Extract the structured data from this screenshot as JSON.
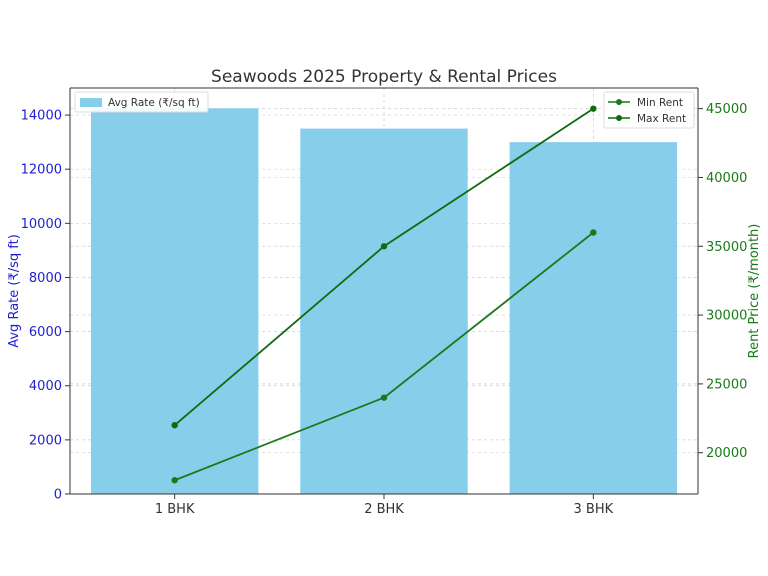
{
  "chart_data": {
    "type": "bar+line",
    "title": "Seawoods 2025 Property & Rental Prices",
    "categories": [
      "1 BHK",
      "2 BHK",
      "3 BHK"
    ],
    "bar_series": {
      "name": "Avg Rate (₹/sq ft)",
      "values": [
        14250,
        13500,
        13000
      ],
      "color": "#87ceeb"
    },
    "line_series": [
      {
        "name": "Min Rent",
        "values": [
          18000,
          24000,
          36000
        ],
        "color": "#1a7a1a"
      },
      {
        "name": "Max Rent",
        "values": [
          22000,
          35000,
          45000
        ],
        "color": "#106b10"
      }
    ],
    "y_left": {
      "label": "Avg Rate (₹/sq ft)",
      "ylim": [
        0,
        15000
      ],
      "ticks": [
        "0",
        "2000",
        "4000",
        "6000",
        "8000",
        "10000",
        "12000",
        "14000"
      ],
      "color": "#1f1fd0"
    },
    "y_right": {
      "label": "Rent Price (₹/month)",
      "ylim": [
        17000,
        46500
      ],
      "ticks": [
        "20000",
        "25000",
        "30000",
        "35000",
        "40000",
        "45000"
      ],
      "color": "#1a7a1a"
    },
    "grid": true,
    "legend_left": "top-left",
    "legend_right": "top-right"
  }
}
